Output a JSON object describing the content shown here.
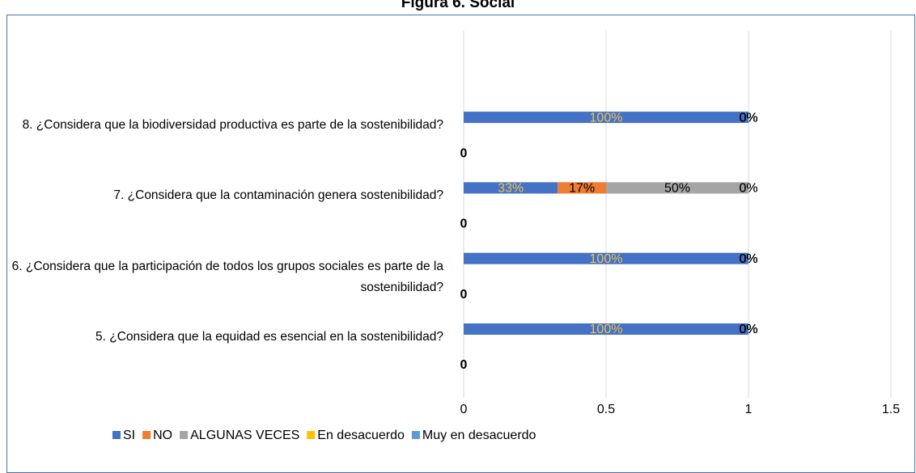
{
  "chart_data": {
    "type": "stacked_bar_horizontal",
    "title": "Figura 6. Social",
    "categories": [
      "5. ¿Considera que la equidad es esencial en la sostenibilidad?",
      "6. ¿Considera que la participación de todos los grupos sociales es parte de la sostenibilidad?",
      "7. ¿Considera que la contaminación genera sostenibilidad?",
      "8. ¿Considera que la biodiversidad productiva es parte de la sostenibilidad?"
    ],
    "series": [
      {
        "name": "SI",
        "color": "#4472c4",
        "label_color": "#f2c14e",
        "values": [
          1,
          1,
          0.33,
          1
        ],
        "value_labels": [
          "100%",
          "100%",
          "33%",
          "100%"
        ]
      },
      {
        "name": "NO",
        "color": "#ed7d31",
        "label_color": "#000000",
        "values": [
          0,
          0,
          0.17,
          0
        ],
        "value_labels": [
          "0%",
          "0%",
          "17%",
          "0%"
        ]
      },
      {
        "name": "ALGUNAS VECES",
        "color": "#a5a5a5",
        "label_color": "#000000",
        "values": [
          0,
          0,
          0.5,
          0
        ],
        "value_labels": [
          "0%",
          "0%",
          "50%",
          "0%"
        ]
      },
      {
        "name": "En desacuerdo",
        "color": "#ffc000",
        "label_color": "#000000",
        "values": [
          0,
          0,
          0,
          0
        ],
        "value_labels": [
          "0%",
          "0%",
          "0%",
          "0%"
        ]
      },
      {
        "name": "Muy en desacuerdo",
        "color": "#5b9bd5",
        "label_color": "#000000",
        "values": [
          0,
          0,
          0,
          0
        ],
        "value_labels": [
          "0%",
          "0%",
          "0%",
          "0%"
        ]
      }
    ],
    "second_row_values": [
      0,
      0,
      0,
      0
    ],
    "xlim": [
      0,
      1.5
    ],
    "xticks": [
      0,
      0.5,
      1,
      1.5
    ],
    "grid": true,
    "legend": "bottom"
  }
}
